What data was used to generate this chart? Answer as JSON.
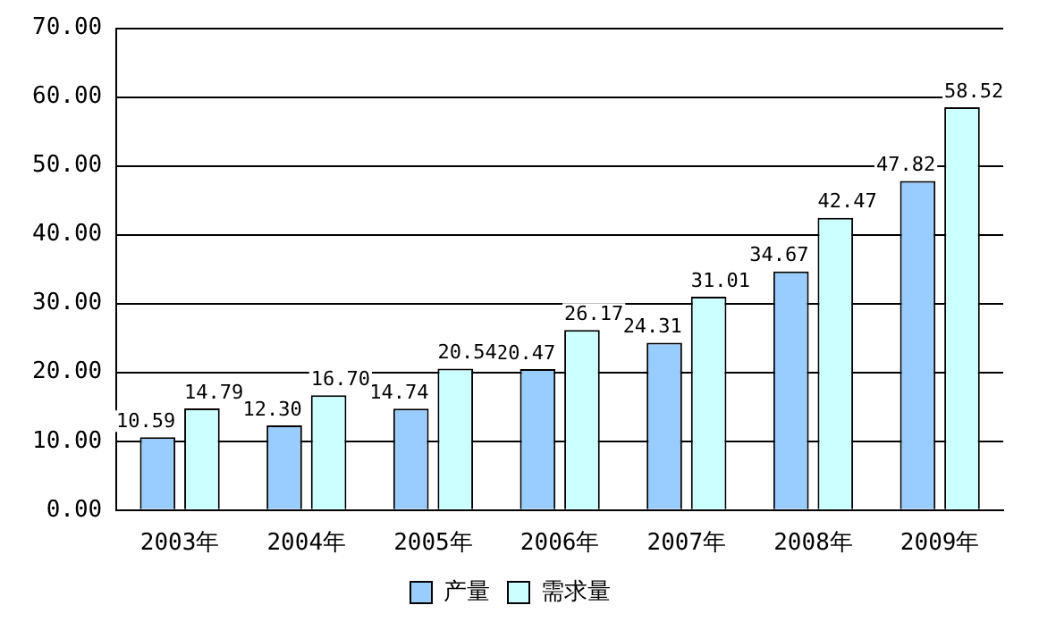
{
  "chart_data": {
    "type": "bar",
    "categories": [
      "2003年",
      "2004年",
      "2005年",
      "2006年",
      "2007年",
      "2008年",
      "2009年"
    ],
    "series": [
      {
        "name": "产量",
        "color": "#99ccff",
        "values": [
          10.59,
          12.3,
          14.74,
          20.47,
          24.31,
          34.67,
          47.82
        ],
        "value_labels": [
          "10.59",
          "12.30",
          "14.74",
          "20.47",
          "24.31",
          "34.67",
          "47.82"
        ]
      },
      {
        "name": "需求量",
        "color": "#ccffff",
        "values": [
          14.79,
          16.7,
          20.54,
          26.17,
          31.01,
          42.47,
          58.52
        ],
        "value_labels": [
          "14.79",
          "16.70",
          "20.54",
          "26.17",
          "31.01",
          "42.47",
          "58.52"
        ]
      }
    ],
    "ylim": [
      0,
      70
    ],
    "yticks": [
      {
        "value": 0,
        "label": "0.00"
      },
      {
        "value": 10,
        "label": "10.00"
      },
      {
        "value": 20,
        "label": "20.00"
      },
      {
        "value": 30,
        "label": "30.00"
      },
      {
        "value": 40,
        "label": "40.00"
      },
      {
        "value": 50,
        "label": "50.00"
      },
      {
        "value": 60,
        "label": "60.00"
      },
      {
        "value": 70,
        "label": "70.00"
      }
    ],
    "grid": "y",
    "legend": "bottom"
  }
}
